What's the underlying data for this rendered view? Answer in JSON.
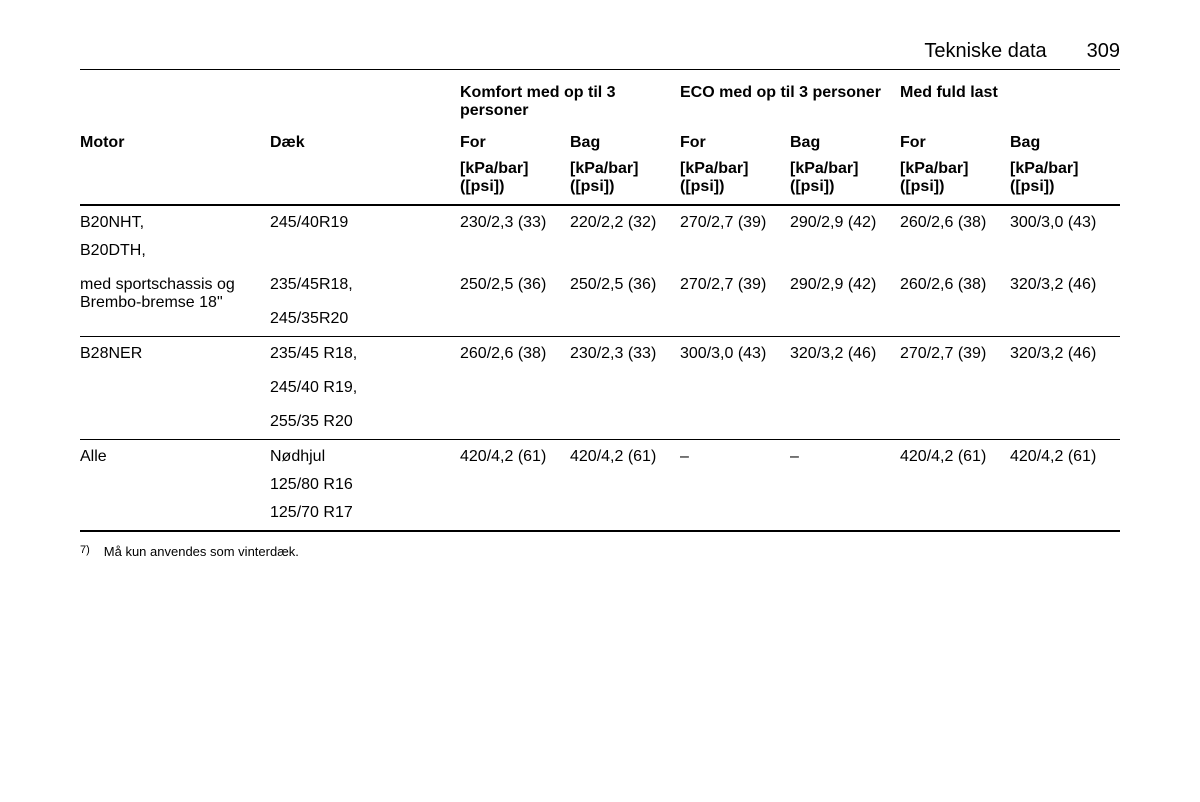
{
  "page": {
    "section_title": "Tekniske data",
    "page_number": "309"
  },
  "header": {
    "group_comfort": "Komfort med op til 3 personer",
    "group_eco": "ECO med op til 3 personer",
    "group_full": "Med fuld last",
    "col_motor": "Motor",
    "col_tyre": "Dæk",
    "col_front": "For",
    "col_rear": "Bag",
    "unit": "[kPa/bar] ([psi])"
  },
  "rows": {
    "r1": {
      "motor_line1": "B20NHT,",
      "motor_line2": "B20DTH,",
      "motor_line3": "med sportschassis og Brembo-bremse 18\"",
      "tyre1": "245/40R19",
      "tyre2": "235/45R18,",
      "tyre3": "245/35R20",
      "v1": {
        "cf": "230/2,3 (33)",
        "cr": "220/2,2 (32)",
        "ef": "270/2,7 (39)",
        "er": "290/2,9 (42)",
        "ff": "260/2,6 (38)",
        "fr": "300/3,0 (43)"
      },
      "v2": {
        "cf": "250/2,5 (36)",
        "cr": "250/2,5 (36)",
        "ef": "270/2,7 (39)",
        "er": "290/2,9 (42)",
        "ff": "260/2,6 (38)",
        "fr": "320/3,2 (46)"
      }
    },
    "r2": {
      "motor": "B28NER",
      "tyre1": "235/45 R18,",
      "tyre2": "245/40 R19,",
      "tyre3": "255/35 R20",
      "v1": {
        "cf": "260/2,6 (38)",
        "cr": "230/2,3 (33)",
        "ef": "300/3,0 (43)",
        "er": "320/3,2 (46)",
        "ff": "270/2,7 (39)",
        "fr": "320/3,2 (46)"
      }
    },
    "r3": {
      "motor": "Alle",
      "tyre1": "Nødhjul",
      "tyre2": "125/80 R16",
      "tyre3": "125/70 R17",
      "v1": {
        "cf": "420/4,2 (61)",
        "cr": "420/4,2 (61)",
        "ef": "–",
        "er": "–",
        "ff": "420/4,2 (61)",
        "fr": "420/4,2 (61)"
      }
    }
  },
  "footnote": {
    "marker": "7)",
    "text": "Må kun anvendes som vinterdæk."
  }
}
